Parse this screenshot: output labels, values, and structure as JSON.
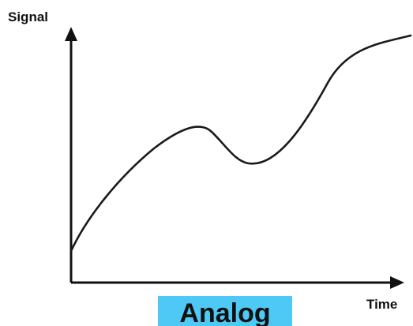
{
  "diagram": {
    "y_axis_label": "Signal",
    "x_axis_label": "Time",
    "caption": "Analog",
    "colors": {
      "line": "#1a1a1a",
      "axis": "#111111",
      "caption_bg": "#4ec9f5",
      "text": "#111111"
    }
  }
}
